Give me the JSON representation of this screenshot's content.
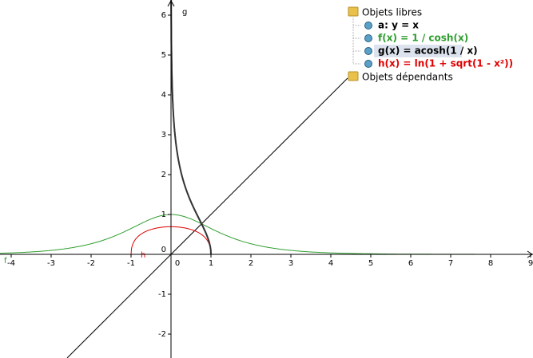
{
  "graphics": {
    "xlim": [
      -4.28,
      9.06
    ],
    "ylim": [
      -2.6,
      6.38
    ],
    "xticks": [
      -4,
      -3,
      -2,
      -1,
      1,
      2,
      3,
      4,
      5,
      6,
      7,
      8,
      9
    ],
    "yticks": [
      -2,
      -1,
      1,
      2,
      3,
      4,
      5,
      6
    ],
    "origin_label": "0",
    "curve_labels": {
      "g": "g",
      "f": "f",
      "h": "h"
    }
  },
  "algebra": {
    "free_objects": "Objets libres",
    "items": [
      {
        "text": "a: y = x",
        "color": "#000000"
      },
      {
        "text": "f(x) = 1 / cosh(x)",
        "color": "#2e9e2e"
      },
      {
        "text": "g(x) = acosh(1 / x)",
        "color": "#000000"
      },
      {
        "text": "h(x) = ln(1 + sqrt(1 - x²))",
        "color": "#e00000"
      }
    ],
    "dependent_objects": "Objets dépendants"
  }
}
